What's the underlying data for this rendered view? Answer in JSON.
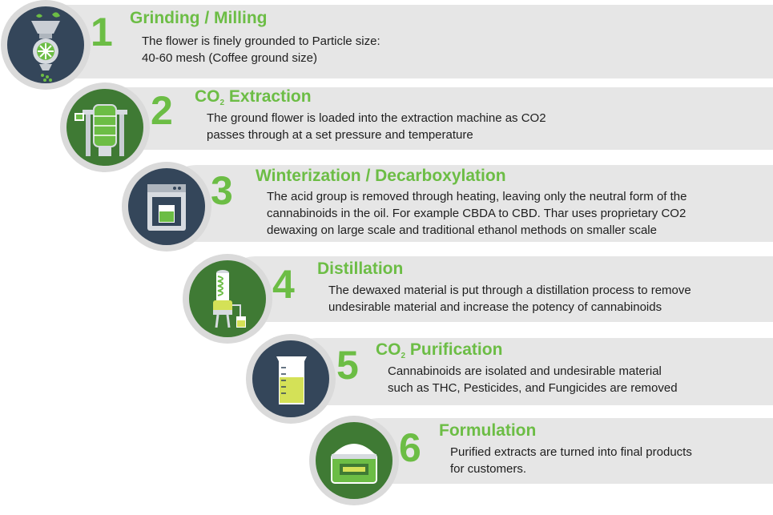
{
  "colors": {
    "accent": "#6cbd45",
    "band": "#e6e6e6",
    "navy": "#34465a",
    "green": "#3f7a34"
  },
  "steps": [
    {
      "number": "1",
      "title": "Grinding / Milling",
      "title_sub": "",
      "title_rest": "",
      "lines": [
        "The flower is finely grounded to Particle size:",
        "40-60 mesh (Coffee ground size)"
      ],
      "icon": "grinder-icon"
    },
    {
      "number": "2",
      "title": "CO",
      "title_sub": "2",
      "title_rest": " Extraction",
      "lines": [
        "The ground flower is loaded into the extraction machine as CO2",
        "passes through at a set pressure and temperature"
      ],
      "icon": "extraction-machine-icon"
    },
    {
      "number": "3",
      "title": "Winterization / Decarboxylation",
      "title_sub": "",
      "title_rest": "",
      "lines": [
        "The acid group is removed through heating, leaving only the neutral form of the",
        "cannabinoids in the oil. For example CBDA to CBD. Thar uses proprietary CO2",
        "dewaxing on large scale and traditional ethanol methods on smaller scale"
      ],
      "icon": "oven-icon"
    },
    {
      "number": "4",
      "title": "Distillation",
      "title_sub": "",
      "title_rest": "",
      "lines": [
        "The dewaxed material is put through a distillation process to remove",
        "undesirable material and increase the potency of cannabinoids"
      ],
      "icon": "distiller-icon"
    },
    {
      "number": "5",
      "title": "CO",
      "title_sub": "2",
      "title_rest": " Purification",
      "lines": [
        "Cannabinoids are isolated and undesirable material",
        "such as THC, Pesticides, and Fungicides are removed"
      ],
      "icon": "beaker-icon"
    },
    {
      "number": "6",
      "title": "Formulation",
      "title_sub": "",
      "title_rest": "",
      "lines": [
        "Purified extracts are turned into final products",
        "for customers."
      ],
      "icon": "cream-jar-icon"
    }
  ]
}
